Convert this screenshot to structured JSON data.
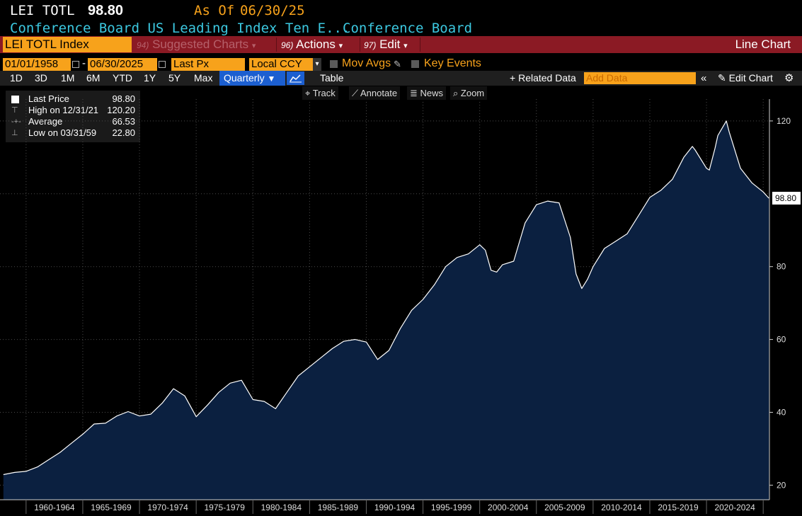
{
  "header": {
    "ticker": "LEI TOTL",
    "price": "98.80",
    "as_of_label": "As Of",
    "as_of_date": "06/30/25",
    "long_name": "Conference Board US Leading Index Ten E...",
    "source": "Conference Board"
  },
  "command_bar": {
    "security": "LEI TOTL Index",
    "suggested_num": "94)",
    "suggested_label": "Suggested Charts",
    "actions_num": "96)",
    "actions_label": "Actions",
    "edit_num": "97)",
    "edit_label": "Edit",
    "chart_type": "Line Chart"
  },
  "controls": {
    "start_date": "01/01/1958",
    "end_date": "06/30/2025",
    "dash": "-",
    "field": "Last Px",
    "currency": "Local CCY",
    "mov_avgs": "Mov Avgs",
    "key_events": "Key Events",
    "ranges": [
      "1D",
      "3D",
      "1M",
      "6M",
      "YTD",
      "1Y",
      "5Y",
      "Max"
    ],
    "periodicity": "Quarterly",
    "table": "Table",
    "related": "Related Data",
    "add_data_placeholder": "Add Data",
    "edit_chart": "Edit Chart"
  },
  "tools": {
    "track": "Track",
    "annotate": "Annotate",
    "news": "News",
    "zoom": "Zoom"
  },
  "legend": {
    "last_price_label": "Last Price",
    "last_price": "98.80",
    "high_label": "High on 12/31/21",
    "high": "120.20",
    "average_label": "Average",
    "average": "66.53",
    "low_label": "Low on 03/31/59",
    "low": "22.80"
  },
  "colors": {
    "accent": "#f7a21b",
    "command_bar": "#8b1a24",
    "area_fill": "#0b2040",
    "line": "#ffffff",
    "cyan": "#3cc8e0"
  },
  "chart_data": {
    "type": "area",
    "title": "",
    "xlabel": "",
    "ylabel": "",
    "ylim": [
      16,
      126
    ],
    "yticks": [
      20,
      40,
      60,
      80,
      120
    ],
    "last_value_label": "98.80",
    "grid": true,
    "x_tick_labels": [
      "1960-1964",
      "1965-1969",
      "1970-1974",
      "1975-1979",
      "1980-1984",
      "1985-1989",
      "1990-1994",
      "1995-1999",
      "2000-2004",
      "2005-2009",
      "2010-2014",
      "2015-2019",
      "2020-2024"
    ],
    "series": [
      {
        "x": [
          1958.0,
          1959.0,
          1960.0,
          1961.0,
          1962.0,
          1963.0,
          1964.0,
          1965.0,
          1966.0,
          1967.0,
          1968.0,
          1969.0,
          1970.0,
          1971.0,
          1972.0,
          1973.0,
          1974.0,
          1975.0,
          1976.0,
          1977.0,
          1978.0,
          1979.0,
          1980.0,
          1981.0,
          1982.0,
          1983.0,
          1984.0,
          1985.0,
          1986.0,
          1987.0,
          1988.0,
          1989.0,
          1990.0,
          1991.0,
          1992.0,
          1993.0,
          1994.0,
          1995.0,
          1996.0,
          1997.0,
          1998.0,
          1999.0,
          2000.0,
          2000.5,
          2001.0,
          2001.5,
          2002.0,
          2003.0,
          2004.0,
          2005.0,
          2006.0,
          2007.0,
          2008.0,
          2008.5,
          2009.0,
          2009.5,
          2010.0,
          2011.0,
          2012.0,
          2013.0,
          2014.0,
          2015.0,
          2016.0,
          2017.0,
          2018.0,
          2018.75,
          2019.0,
          2020.0,
          2020.25,
          2020.75,
          2021.0,
          2021.75,
          2022.0,
          2023.0,
          2024.0,
          2025.0,
          2025.5
        ],
        "y": [
          22.9,
          23.5,
          23.8,
          25.0,
          27.0,
          29.0,
          31.5,
          34.0,
          36.8,
          37.0,
          39.0,
          40.2,
          39.0,
          39.5,
          42.5,
          46.5,
          44.5,
          38.8,
          42.0,
          45.5,
          48.0,
          48.8,
          43.5,
          43.0,
          41.0,
          45.5,
          50.0,
          52.5,
          55.0,
          57.5,
          59.5,
          60.0,
          59.3,
          54.5,
          57.0,
          63.0,
          68.0,
          71.0,
          75.0,
          80.0,
          82.5,
          83.5,
          86.0,
          84.5,
          79.0,
          78.5,
          80.5,
          81.5,
          92.0,
          97.0,
          98.0,
          97.5,
          88.0,
          78.0,
          74.0,
          76.5,
          80.0,
          85.0,
          87.0,
          89.0,
          94.0,
          99.0,
          101.0,
          104.0,
          110.0,
          113.0,
          112.0,
          107.0,
          106.5,
          112.5,
          116.0,
          120.0,
          117.0,
          107.0,
          103.0,
          100.5,
          98.8
        ]
      }
    ]
  }
}
